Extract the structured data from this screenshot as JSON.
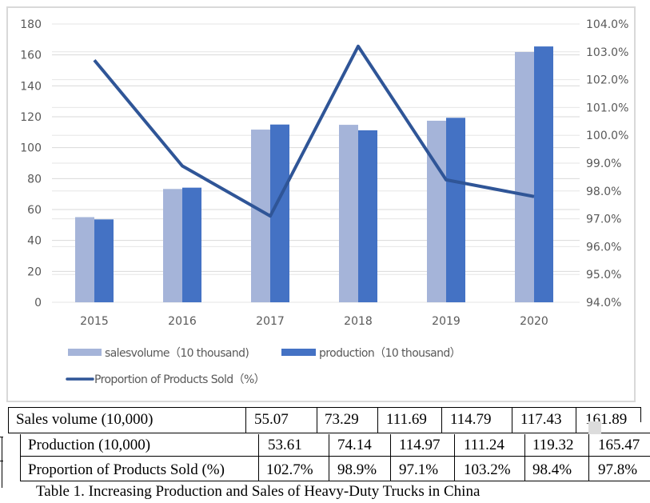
{
  "chart_data": {
    "type": "bar+line",
    "categories": [
      "2015",
      "2016",
      "2017",
      "2018",
      "2019",
      "2020"
    ],
    "series": [
      {
        "name": "sales volume（10 thousand)",
        "type": "bar",
        "axis": "left",
        "color": "#a5b4d9",
        "values": [
          55.07,
          73.29,
          111.69,
          114.79,
          117.43,
          161.89
        ]
      },
      {
        "name": "production（10 thousand）",
        "type": "bar",
        "axis": "left",
        "color": "#4472c4",
        "values": [
          53.61,
          74.14,
          114.97,
          111.24,
          119.32,
          165.47
        ]
      },
      {
        "name": "Proportion of Products Sold（%）",
        "type": "line",
        "axis": "right",
        "color": "#2f5597",
        "values": [
          102.7,
          98.9,
          97.1,
          103.2,
          98.4,
          97.8
        ]
      }
    ],
    "left_axis": {
      "ylim": [
        0,
        180
      ],
      "ticks": [
        "0",
        "20",
        "40",
        "60",
        "80",
        "100",
        "120",
        "140",
        "160",
        "180"
      ]
    },
    "right_axis": {
      "ylim": [
        94.0,
        104.0
      ],
      "ticks": [
        "94.0%",
        "95.0%",
        "96.0%",
        "97.0%",
        "98.0%",
        "99.0%",
        "100.0%",
        "101.0%",
        "102.0%",
        "103.0%",
        "104.0%"
      ]
    },
    "grid": true,
    "legend": {
      "placement": "bottom",
      "items": [
        "sales volume（10 thousand)",
        "production（10 thousand）",
        "Proportion of Products Sold（%）"
      ],
      "labels": [
        "salesvolume（10 thousand)",
        "production（10 thousand）",
        "Proportion of Products Sold（%）"
      ]
    }
  },
  "table": {
    "rows": [
      {
        "label": "Sales volume (10,000)",
        "values": [
          "55.07",
          "73.29",
          "111.69",
          "114.79",
          "117.43",
          "161.89"
        ]
      },
      {
        "label": "Production (10,000)",
        "values": [
          "53.61",
          "74.14",
          "114.97",
          "111.24",
          "119.32",
          "165.47"
        ]
      },
      {
        "label": "Proportion of Products Sold (%)",
        "values": [
          "102.7%",
          "98.9%",
          "97.1%",
          "103.2%",
          "98.4%",
          "97.8%"
        ]
      }
    ],
    "caption": "Table 1. Increasing Production and Sales of Heavy-Duty Trucks in China"
  }
}
